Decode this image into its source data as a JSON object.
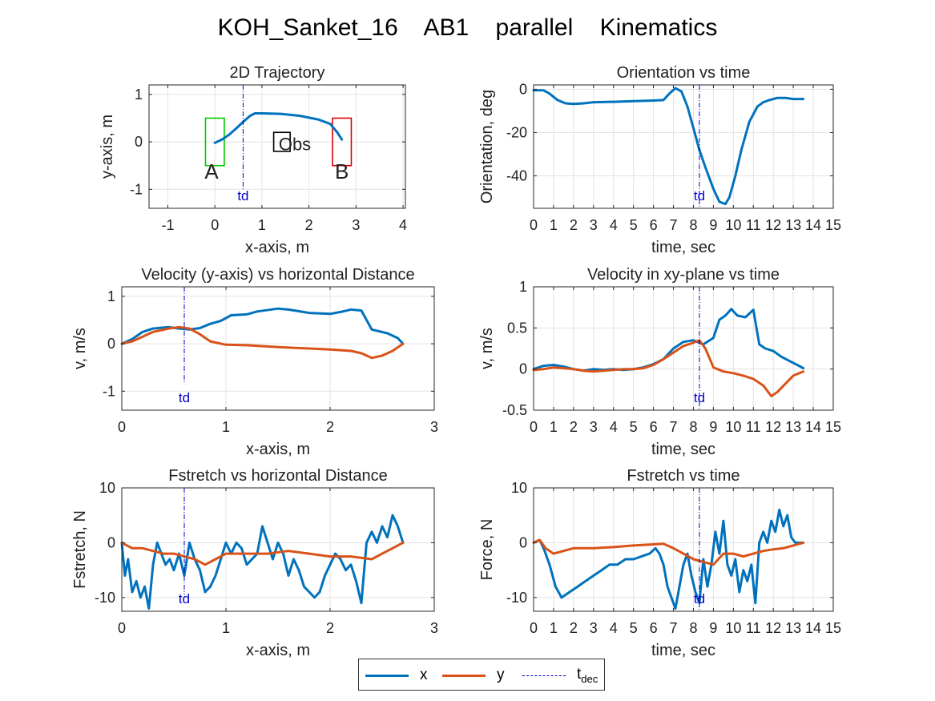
{
  "figure_title": "KOH_Sanket_16    AB1    parallel    Kinematics",
  "legend": {
    "x_label": "x",
    "y_label": "y",
    "t_label": "t",
    "t_sub": "dec"
  },
  "colors": {
    "x": "#0072BD",
    "y": "#D95319",
    "td": "#0000cc",
    "start_box": "#00cc00",
    "end_box": "#dd0000"
  },
  "chart_data": [
    {
      "id": "traj",
      "type": "line",
      "title": "2D Trajectory",
      "xlabel": "x-axis, m",
      "ylabel": "y-axis, m",
      "xlim": [
        -1.4,
        4.05
      ],
      "ylim": [
        -1.4,
        1.2
      ],
      "xticks": [
        -1,
        0,
        1,
        2,
        3,
        4
      ],
      "yticks": [
        -1,
        0,
        1
      ],
      "grid": true,
      "series": [
        {
          "key": "x",
          "x": [
            0,
            0.15,
            0.3,
            0.45,
            0.6,
            0.75,
            0.85,
            1.0,
            1.4,
            1.8,
            2.2,
            2.45,
            2.6,
            2.7
          ],
          "y": [
            -0.02,
            0.05,
            0.15,
            0.28,
            0.42,
            0.55,
            0.6,
            0.6,
            0.59,
            0.55,
            0.47,
            0.38,
            0.2,
            0.05
          ]
        }
      ],
      "boxes": [
        {
          "color": "start_box",
          "x0": -0.2,
          "x1": 0.2,
          "y0": -0.5,
          "y1": 0.5
        },
        {
          "color": "end_box",
          "x0": 2.5,
          "x1": 2.9,
          "y0": -0.5,
          "y1": 0.5
        },
        {
          "color": "black",
          "x0": 1.25,
          "x1": 1.6,
          "y0": -0.2,
          "y1": 0.2
        }
      ],
      "annotations": [
        {
          "text": "A",
          "x": -0.07,
          "y": -0.62,
          "size": 26
        },
        {
          "text": "B",
          "x": 2.7,
          "y": -0.62,
          "size": 26
        },
        {
          "text": "Obs",
          "x": 1.7,
          "y": -0.05,
          "size": 22
        }
      ],
      "td": {
        "x": 0.6,
        "label": "td",
        "ymin": -1.0,
        "ymax": 1.2
      }
    },
    {
      "id": "orient",
      "type": "line",
      "title": "Orientation vs time",
      "xlabel": "time, sec",
      "ylabel": "Orientation, deg",
      "xlim": [
        0,
        15
      ],
      "ylim": [
        -55,
        2
      ],
      "xticks": [
        0,
        1,
        2,
        3,
        4,
        5,
        6,
        7,
        8,
        9,
        10,
        11,
        12,
        13,
        14,
        15
      ],
      "yticks": [
        -40,
        -20,
        0
      ],
      "grid": true,
      "series": [
        {
          "key": "x",
          "x": [
            0,
            0.5,
            0.8,
            1.2,
            1.6,
            2.0,
            2.5,
            3,
            4,
            5,
            6,
            6.5,
            6.8,
            7.1,
            7.4,
            7.7,
            8.0,
            8.3,
            8.6,
            9.0,
            9.3,
            9.6,
            9.8,
            10.1,
            10.4,
            10.8,
            11.2,
            11.5,
            11.8,
            12.2,
            12.6,
            13.0,
            13.5
          ],
          "y": [
            -0.5,
            -0.5,
            -2,
            -5,
            -6.5,
            -6.8,
            -6.5,
            -6,
            -5.8,
            -5.5,
            -5.2,
            -5,
            -2,
            0.5,
            -1,
            -8,
            -18,
            -28,
            -36,
            -46,
            -52,
            -53,
            -50,
            -40,
            -28,
            -15,
            -8,
            -6,
            -5,
            -4,
            -4,
            -4.5,
            -4.5
          ]
        }
      ],
      "td": {
        "x": 8.3,
        "label": "td",
        "ymin": -55,
        "ymax": 2
      }
    },
    {
      "id": "vdist",
      "type": "line",
      "title": "Velocity (y-axis) vs horizontal Distance",
      "xlabel": "x-axis, m",
      "ylabel": "v, m/s",
      "xlim": [
        0,
        3
      ],
      "ylim": [
        -1.4,
        1.2
      ],
      "xticks": [
        0,
        1,
        2,
        3
      ],
      "yticks": [
        -1,
        0,
        1
      ],
      "grid": true,
      "series": [
        {
          "key": "x",
          "x": [
            0,
            0.1,
            0.2,
            0.3,
            0.45,
            0.55,
            0.65,
            0.75,
            0.85,
            0.95,
            1.05,
            1.2,
            1.3,
            1.5,
            1.6,
            1.8,
            2.0,
            2.1,
            2.2,
            2.3,
            2.4,
            2.55,
            2.65,
            2.7
          ],
          "y": [
            0.0,
            0.1,
            0.25,
            0.32,
            0.35,
            0.32,
            0.3,
            0.33,
            0.42,
            0.48,
            0.6,
            0.62,
            0.68,
            0.74,
            0.72,
            0.65,
            0.63,
            0.67,
            0.72,
            0.7,
            0.3,
            0.22,
            0.12,
            0.0
          ]
        },
        {
          "key": "y",
          "x": [
            0,
            0.1,
            0.2,
            0.3,
            0.45,
            0.55,
            0.65,
            0.75,
            0.85,
            1.0,
            1.2,
            1.5,
            1.8,
            2.0,
            2.2,
            2.3,
            2.4,
            2.5,
            2.6,
            2.7
          ],
          "y": [
            0.0,
            0.05,
            0.15,
            0.25,
            0.32,
            0.35,
            0.32,
            0.2,
            0.05,
            -0.02,
            -0.03,
            -0.07,
            -0.1,
            -0.12,
            -0.15,
            -0.2,
            -0.3,
            -0.25,
            -0.15,
            0.0
          ]
        }
      ],
      "td": {
        "x": 0.6,
        "label": "td",
        "ymin": -0.85,
        "ymax": 1.2
      }
    },
    {
      "id": "vtime",
      "type": "line",
      "title": "Velocity in xy-plane vs time",
      "xlabel": "time, sec",
      "ylabel": "v, m/s",
      "xlim": [
        0,
        15
      ],
      "ylim": [
        -0.5,
        1
      ],
      "xticks": [
        0,
        1,
        2,
        3,
        4,
        5,
        6,
        7,
        8,
        9,
        10,
        11,
        12,
        13,
        14,
        15
      ],
      "yticks": [
        -0.5,
        0,
        0.5,
        1
      ],
      "grid": true,
      "series": [
        {
          "key": "x",
          "x": [
            0,
            0.5,
            1,
            1.5,
            2,
            2.5,
            3,
            3.5,
            4,
            4.5,
            5,
            5.5,
            6,
            6.5,
            7,
            7.5,
            8,
            8.5,
            9,
            9.3,
            9.6,
            9.9,
            10.2,
            10.6,
            11,
            11.3,
            11.6,
            12,
            12.4,
            12.8,
            13.2,
            13.5
          ],
          "y": [
            0,
            0.04,
            0.05,
            0.03,
            0.0,
            -0.02,
            0,
            -0.01,
            0,
            -0.01,
            0,
            0.02,
            0.06,
            0.12,
            0.25,
            0.33,
            0.35,
            0.3,
            0.38,
            0.6,
            0.65,
            0.73,
            0.65,
            0.63,
            0.72,
            0.3,
            0.25,
            0.22,
            0.15,
            0.1,
            0.05,
            0.01
          ]
        },
        {
          "key": "y",
          "x": [
            0,
            0.5,
            1,
            1.5,
            2,
            2.5,
            3,
            3.5,
            4,
            4.5,
            5,
            5.5,
            6,
            6.5,
            7,
            7.5,
            8,
            8.3,
            8.6,
            9,
            9.5,
            10,
            10.5,
            11,
            11.5,
            11.9,
            12.2,
            12.6,
            13,
            13.5
          ],
          "y": [
            -0.01,
            0,
            0.02,
            0.01,
            0,
            -0.02,
            -0.03,
            -0.02,
            -0.01,
            0,
            0,
            0.01,
            0.05,
            0.12,
            0.2,
            0.28,
            0.32,
            0.35,
            0.25,
            0.02,
            -0.03,
            -0.05,
            -0.08,
            -0.12,
            -0.2,
            -0.33,
            -0.28,
            -0.18,
            -0.08,
            -0.03
          ]
        }
      ],
      "td": {
        "x": 8.3,
        "label": "td",
        "ymin": -0.5,
        "ymax": 1
      }
    },
    {
      "id": "fdist",
      "type": "line",
      "title": "Fstretch vs horizontal Distance",
      "xlabel": "x-axis, m",
      "ylabel": "Fstretch, N",
      "xlim": [
        0,
        3
      ],
      "ylim": [
        -12.5,
        10
      ],
      "xticks": [
        0,
        1,
        2,
        3
      ],
      "yticks": [
        -10,
        0,
        10
      ],
      "grid": true,
      "series": [
        {
          "key": "x",
          "x": [
            0,
            0.03,
            0.06,
            0.1,
            0.14,
            0.18,
            0.22,
            0.26,
            0.3,
            0.34,
            0.38,
            0.42,
            0.46,
            0.5,
            0.55,
            0.6,
            0.65,
            0.7,
            0.75,
            0.8,
            0.85,
            0.9,
            0.95,
            1.0,
            1.05,
            1.1,
            1.15,
            1.2,
            1.25,
            1.3,
            1.35,
            1.4,
            1.45,
            1.5,
            1.55,
            1.6,
            1.65,
            1.7,
            1.75,
            1.8,
            1.85,
            1.9,
            1.95,
            2.0,
            2.05,
            2.1,
            2.15,
            2.2,
            2.25,
            2.3,
            2.35,
            2.4,
            2.45,
            2.5,
            2.55,
            2.6,
            2.65,
            2.7
          ],
          "y": [
            0,
            -6,
            -3,
            -9,
            -7,
            -10,
            -8,
            -12,
            -4,
            0,
            -2,
            -4,
            -3,
            -5,
            -2,
            -6,
            0,
            -3,
            -5,
            -9,
            -8,
            -6,
            -3,
            0,
            -2,
            0,
            -1,
            -4,
            -3,
            -2,
            3,
            0,
            -3,
            0,
            -2,
            -6,
            -3,
            -5,
            -8,
            -9,
            -10,
            -9,
            -6,
            -4,
            -2,
            -3,
            -5,
            -4,
            -7,
            -11,
            0,
            2,
            0,
            3,
            1,
            5,
            3,
            0
          ]
        },
        {
          "key": "y",
          "x": [
            0,
            0.1,
            0.2,
            0.3,
            0.4,
            0.5,
            0.6,
            0.7,
            0.8,
            0.9,
            1.0,
            1.2,
            1.4,
            1.6,
            1.8,
            2.0,
            2.2,
            2.4,
            2.5,
            2.6,
            2.7
          ],
          "y": [
            0,
            -1,
            -1,
            -1.5,
            -2,
            -2,
            -2.5,
            -3,
            -4,
            -3,
            -2,
            -2,
            -2,
            -1.5,
            -2,
            -2.5,
            -2.5,
            -3,
            -2,
            -1,
            0
          ]
        }
      ],
      "td": {
        "x": 0.6,
        "label": "td",
        "ymin": -9.5,
        "ymax": 10
      }
    },
    {
      "id": "ftime",
      "type": "line",
      "title": "Fstretch vs time",
      "xlabel": "time, sec",
      "ylabel": "Force, N",
      "xlim": [
        0,
        15
      ],
      "ylim": [
        -12.5,
        10
      ],
      "xticks": [
        0,
        1,
        2,
        3,
        4,
        5,
        6,
        7,
        8,
        9,
        10,
        11,
        12,
        13,
        14,
        15
      ],
      "yticks": [
        -10,
        0,
        10
      ],
      "grid": true,
      "series": [
        {
          "key": "x",
          "x": [
            0,
            0.3,
            0.5,
            0.8,
            1.1,
            1.4,
            1.8,
            2.2,
            2.6,
            3.0,
            3.4,
            3.8,
            4.2,
            4.6,
            5.0,
            5.4,
            5.8,
            6.1,
            6.3,
            6.5,
            6.7,
            6.9,
            7.1,
            7.3,
            7.5,
            7.7,
            7.9,
            8.1,
            8.3,
            8.5,
            8.7,
            8.9,
            9.1,
            9.3,
            9.5,
            9.7,
            9.9,
            10.1,
            10.3,
            10.5,
            10.7,
            10.9,
            11.1,
            11.3,
            11.5,
            11.7,
            11.9,
            12.1,
            12.3,
            12.5,
            12.7,
            12.9,
            13.1,
            13.3,
            13.5
          ],
          "y": [
            0,
            0.5,
            -1,
            -4,
            -8,
            -10,
            -9,
            -8,
            -7,
            -6,
            -5,
            -4,
            -4,
            -3,
            -3,
            -2.5,
            -2,
            -1,
            -2,
            -4,
            -8,
            -10,
            -12,
            -8,
            -4,
            -2,
            -6,
            -9,
            -11,
            -3,
            -8,
            -4,
            2,
            -2,
            4,
            -4,
            -6,
            -3,
            -9,
            -5,
            -7,
            -4,
            -11,
            0,
            2,
            0,
            4,
            2,
            6,
            3,
            5,
            1,
            0,
            0,
            0
          ]
        },
        {
          "key": "y",
          "x": [
            0,
            0.3,
            0.6,
            1.0,
            1.5,
            2.0,
            3.0,
            4.0,
            5.0,
            6.0,
            6.5,
            7.0,
            7.5,
            8.0,
            8.5,
            9.0,
            9.5,
            10.0,
            10.5,
            11.0,
            11.5,
            12.0,
            12.5,
            13.0,
            13.5
          ],
          "y": [
            0,
            0.5,
            -1,
            -2,
            -1.5,
            -1,
            -1,
            -0.8,
            -0.5,
            -0.3,
            -0.2,
            -1,
            -2,
            -3,
            -3.5,
            -4,
            -2,
            -2,
            -2.5,
            -2,
            -1.5,
            -1.2,
            -1,
            -0.5,
            0
          ]
        }
      ],
      "td": {
        "x": 8.3,
        "label": "td",
        "ymin": -12.5,
        "ymax": 10
      }
    }
  ]
}
